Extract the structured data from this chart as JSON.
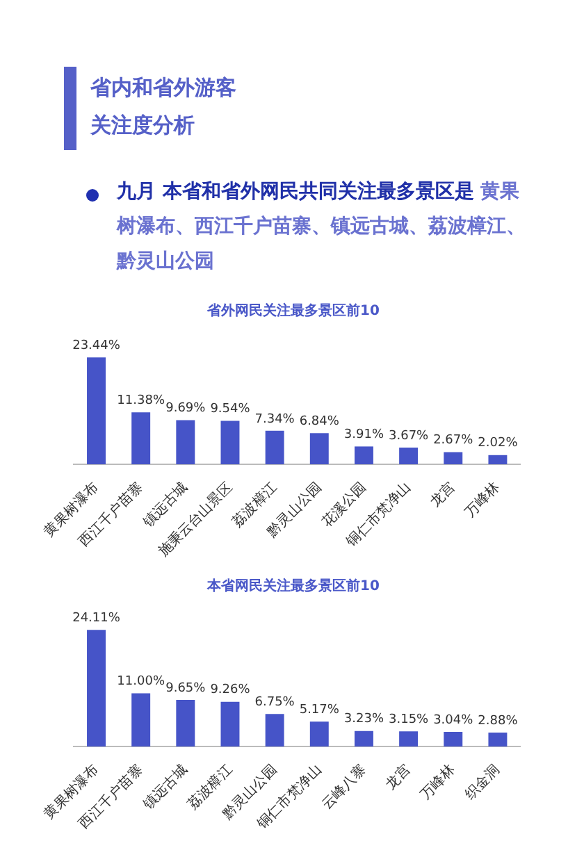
{
  "chart_data": [
    {
      "type": "other",
      "title": "省内和省外游客关注度分析",
      "annotations": [
        "九月 本省和省外网民共同关注最多景区是",
        "黄果树瀑布、西江千户苗寨、镇远古城、荔波樟江、黔灵山公园"
      ]
    },
    {
      "type": "bar",
      "title": "省外网民关注最多景区前10",
      "categories": [
        "黄果树瀑布",
        "西江千户苗寨",
        "镇远古城",
        "施秉云台山景区",
        "荔波樟江",
        "黔灵山公园",
        "花溪公园",
        "铜仁市梵净山",
        "龙宫",
        "万峰林"
      ],
      "values": [
        23.44,
        11.38,
        9.69,
        9.54,
        7.34,
        6.84,
        3.91,
        3.67,
        2.67,
        2.02
      ],
      "value_labels": [
        "23.44%",
        "11.38%",
        "9.69%",
        "9.54%",
        "7.34%",
        "6.84%",
        "3.91%",
        "3.67%",
        "2.67%",
        "2.02%"
      ],
      "color": "#4654c8",
      "grid": false,
      "tick_labels": "x",
      "legend": false
    },
    {
      "type": "bar",
      "title": "本省网民关注最多景区前10",
      "categories": [
        "黄果树瀑布",
        "西江千户苗寨",
        "镇远古城",
        "荔波樟江",
        "黔灵山公园",
        "铜仁市梵净山",
        "云峰八寨",
        "龙宫",
        "万峰林",
        "织金洞"
      ],
      "values": [
        24.11,
        11.0,
        9.65,
        9.26,
        6.75,
        5.17,
        3.23,
        3.15,
        3.04,
        2.88
      ],
      "value_labels": [
        "24.11%",
        "11.00%",
        "9.65%",
        "9.26%",
        "6.75%",
        "5.17%",
        "3.23%",
        "3.15%",
        "3.04%",
        "2.88%"
      ],
      "color": "#4654c8",
      "grid": false,
      "tick_labels": "x",
      "legend": false
    }
  ]
}
